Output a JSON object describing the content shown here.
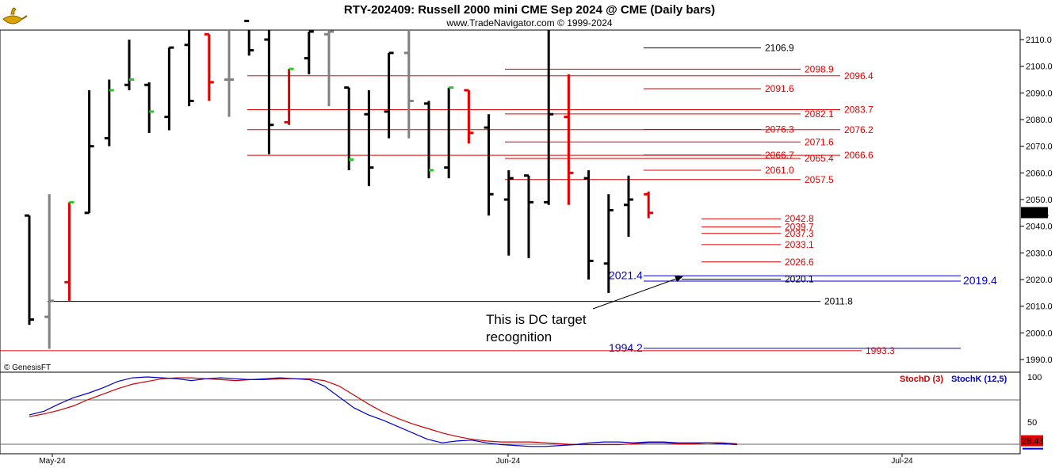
{
  "header": {
    "title": "RTY-202409:  Russell 2000 mini CME Sep 2024 @ CME  (Daily bars)",
    "subtitle": "www.TradeNavigator.com © 1999-2024",
    "copyright": "© GenesisFT",
    "logo_icon": "genie-lamp-icon"
  },
  "colors": {
    "up": "#000000",
    "down": "#e00000",
    "neutral": "#808080",
    "green": "#22cc22",
    "blue": "#0000cc",
    "red": "#e00000",
    "grid": "#000000"
  },
  "chart_data": [
    {
      "type": "ohlc",
      "title": "RTY-202409:  Russell 2000 mini CME Sep 2024 @ CME  (Daily bars)",
      "ylim": [
        1985,
        2117
      ],
      "y_ticks": [
        1990.0,
        2000.0,
        2010.0,
        2020.0,
        2030.0,
        2040.0,
        2050.0,
        2060.0,
        2070.0,
        2080.0,
        2090.0,
        2100.0,
        2110.0
      ],
      "x_labels": [
        "May-24",
        "Jun-24",
        "Jul-24"
      ],
      "last_price": "2045.1",
      "bars": [
        {
          "high": 2044.0,
          "low": 2003.0,
          "open": 2044.0,
          "close": 2005.0,
          "color": "black"
        },
        {
          "high": 2052.0,
          "low": 1994.0,
          "open": 2006.0,
          "close": 2012.0,
          "color": "gray"
        },
        {
          "high": 2049.0,
          "low": 2012.0,
          "open": 2019.0,
          "close": 2049.0,
          "color": "red",
          "tick": "green"
        },
        {
          "high": 2091.0,
          "low": 2045.0,
          "open": 2045.0,
          "close": 2070.0,
          "color": "black"
        },
        {
          "high": 2095.0,
          "low": 2070.0,
          "open": 2073.0,
          "close": 2091.0,
          "color": "black",
          "tick": "green"
        },
        {
          "high": 2110.0,
          "low": 2091.0,
          "open": 2093.0,
          "close": 2095.0,
          "color": "black",
          "tick": "green"
        },
        {
          "high": 2094.0,
          "low": 2075.0,
          "open": 2093.0,
          "close": 2083.0,
          "color": "black",
          "tick": "green"
        },
        {
          "high": 2107.0,
          "low": 2076.0,
          "open": 2081.0,
          "close": 2107.0,
          "color": "black"
        },
        {
          "high": 2115.0,
          "low": 2085.0,
          "open": 2108.0,
          "close": 2087.0,
          "color": "black"
        },
        {
          "high": 2112.0,
          "low": 2087.0,
          "open": 2112.0,
          "close": 2094.0,
          "color": "red"
        },
        {
          "high": 2117.0,
          "low": 2081.0,
          "open": 2095.0,
          "close": 2095.0,
          "color": "gray"
        },
        {
          "high": 2117.0,
          "low": 2104.0,
          "open": 2117.0,
          "close": 2106.0,
          "color": "black"
        },
        {
          "high": 2117.0,
          "low": 2067.0,
          "open": 2110.0,
          "close": 2078.0,
          "color": "black"
        },
        {
          "high": 2099.0,
          "low": 2078.0,
          "open": 2079.0,
          "close": 2099.0,
          "color": "red",
          "tick": "green"
        },
        {
          "high": 2113.0,
          "low": 2097.0,
          "open": 2103.0,
          "close": 2113.0,
          "color": "black"
        },
        {
          "high": 2117.0,
          "low": 2085.0,
          "open": 2112.0,
          "close": 2113.0,
          "color": "gray"
        },
        {
          "high": 2092.0,
          "low": 2061.0,
          "open": 2092.0,
          "close": 2065.0,
          "color": "black",
          "tick": "green"
        },
        {
          "high": 2091.0,
          "low": 2055.0,
          "open": 2082.0,
          "close": 2062.0,
          "color": "black"
        },
        {
          "high": 2105.0,
          "low": 2073.0,
          "open": 2083.0,
          "close": 2105.0,
          "color": "black"
        },
        {
          "high": 2117.0,
          "low": 2073.0,
          "open": 2105.0,
          "close": 2087.0,
          "color": "gray"
        },
        {
          "high": 2087.0,
          "low": 2058.0,
          "open": 2086.0,
          "close": 2061.0,
          "color": "black",
          "tick": "green"
        },
        {
          "high": 2092.0,
          "low": 2058.0,
          "open": 2062.0,
          "close": 2092.0,
          "color": "black",
          "tick": "green"
        },
        {
          "high": 2091.0,
          "low": 2071.0,
          "open": 2091.0,
          "close": 2075.0,
          "color": "red"
        },
        {
          "high": 2082.0,
          "low": 2044.0,
          "open": 2077.0,
          "close": 2052.0,
          "color": "black"
        },
        {
          "high": 2061.0,
          "low": 2029.0,
          "open": 2050.0,
          "close": 2058.0,
          "color": "black"
        },
        {
          "high": 2059.0,
          "low": 2028.0,
          "open": 2059.0,
          "close": 2049.0,
          "color": "black"
        },
        {
          "high": 2117.0,
          "low": 2048.0,
          "open": 2049.0,
          "close": 2082.0,
          "color": "black"
        },
        {
          "high": 2097.0,
          "low": 2048.0,
          "open": 2081.0,
          "close": 2060.0,
          "color": "red"
        },
        {
          "high": 2061.0,
          "low": 2020.0,
          "open": 2058.0,
          "close": 2027.0,
          "color": "black"
        },
        {
          "high": 2052.0,
          "low": 2015.0,
          "open": 2026.0,
          "close": 2046.0,
          "color": "black"
        },
        {
          "high": 2059.0,
          "low": 2036.0,
          "open": 2048.0,
          "close": 2050.0,
          "color": "black"
        },
        {
          "high": 2053.0,
          "low": 2043.0,
          "open": 2052.0,
          "close": 2045.0,
          "color": "red"
        }
      ],
      "levels": [
        {
          "value": 2106.9,
          "label": "2106.9",
          "color": "black"
        },
        {
          "value": 2098.9,
          "label": "2098.9",
          "color": "red"
        },
        {
          "value": 2096.4,
          "label": "2096.4",
          "color": "red"
        },
        {
          "value": 2091.6,
          "label": "2091.6",
          "color": "red"
        },
        {
          "value": 2083.7,
          "label": "2083.7",
          "color": "red"
        },
        {
          "value": 2082.1,
          "label": "2082.1",
          "color": "red"
        },
        {
          "value": 2076.3,
          "label": "2076.3",
          "color": "red"
        },
        {
          "value": 2076.2,
          "label": "2076.2",
          "color": "red"
        },
        {
          "value": 2071.6,
          "label": "2071.6",
          "color": "red"
        },
        {
          "value": 2066.7,
          "label": "2066.7",
          "color": "red"
        },
        {
          "value": 2066.6,
          "label": "2066.6",
          "color": "red"
        },
        {
          "value": 2065.4,
          "label": "2065.4",
          "color": "red"
        },
        {
          "value": 2061.0,
          "label": "2061.0",
          "color": "red"
        },
        {
          "value": 2057.5,
          "label": "2057.5",
          "color": "red"
        },
        {
          "value": 2042.8,
          "label": "2042.8",
          "color": "red"
        },
        {
          "value": 2039.7,
          "label": "2039.7",
          "color": "red"
        },
        {
          "value": 2037.3,
          "label": "2037.3",
          "color": "red"
        },
        {
          "value": 2033.1,
          "label": "2033.1",
          "color": "red"
        },
        {
          "value": 2026.6,
          "label": "2026.6",
          "color": "red"
        },
        {
          "value": 2021.4,
          "label": "2021.4",
          "color": "blue"
        },
        {
          "value": 2020.1,
          "label": "2020.1",
          "color": "black"
        },
        {
          "value": 2019.4,
          "label": "2019.4",
          "color": "blue"
        },
        {
          "value": 2011.8,
          "label": "2011.8",
          "color": "black"
        },
        {
          "value": 1994.2,
          "label": "1994.2",
          "color": "blue"
        },
        {
          "value": 1993.3,
          "label": "1993.3",
          "color": "red"
        }
      ],
      "annotation": {
        "text_line1": "This is DC target",
        "text_line2": "recognition"
      }
    },
    {
      "type": "line",
      "y_ticks": [
        100,
        50
      ],
      "last_value": "28.43",
      "series": [
        {
          "name": "StochD (3)",
          "color": "#cc0000",
          "values": [
            56,
            59,
            63,
            68,
            75,
            81,
            87,
            92,
            95,
            98,
            99,
            99,
            98,
            97,
            96,
            97,
            97,
            98,
            98,
            98,
            96,
            90,
            80,
            70,
            61,
            54,
            48,
            43,
            38,
            34,
            31,
            29,
            28,
            28,
            28,
            27,
            26,
            25,
            25,
            25,
            25,
            26,
            27,
            27,
            26,
            26,
            27,
            27,
            26
          ]
        },
        {
          "name": "StochK (12,5)",
          "color": "#0000cc",
          "values": [
            58,
            62,
            70,
            77,
            82,
            88,
            95,
            99,
            100,
            99,
            98,
            96,
            98,
            99,
            98,
            97,
            98,
            99,
            98,
            97,
            90,
            78,
            66,
            58,
            52,
            45,
            38,
            31,
            27,
            29,
            30,
            27,
            25,
            24,
            23,
            23,
            24,
            25,
            27,
            28,
            28,
            27,
            28,
            28,
            27,
            27,
            27,
            26,
            25
          ]
        }
      ]
    }
  ]
}
